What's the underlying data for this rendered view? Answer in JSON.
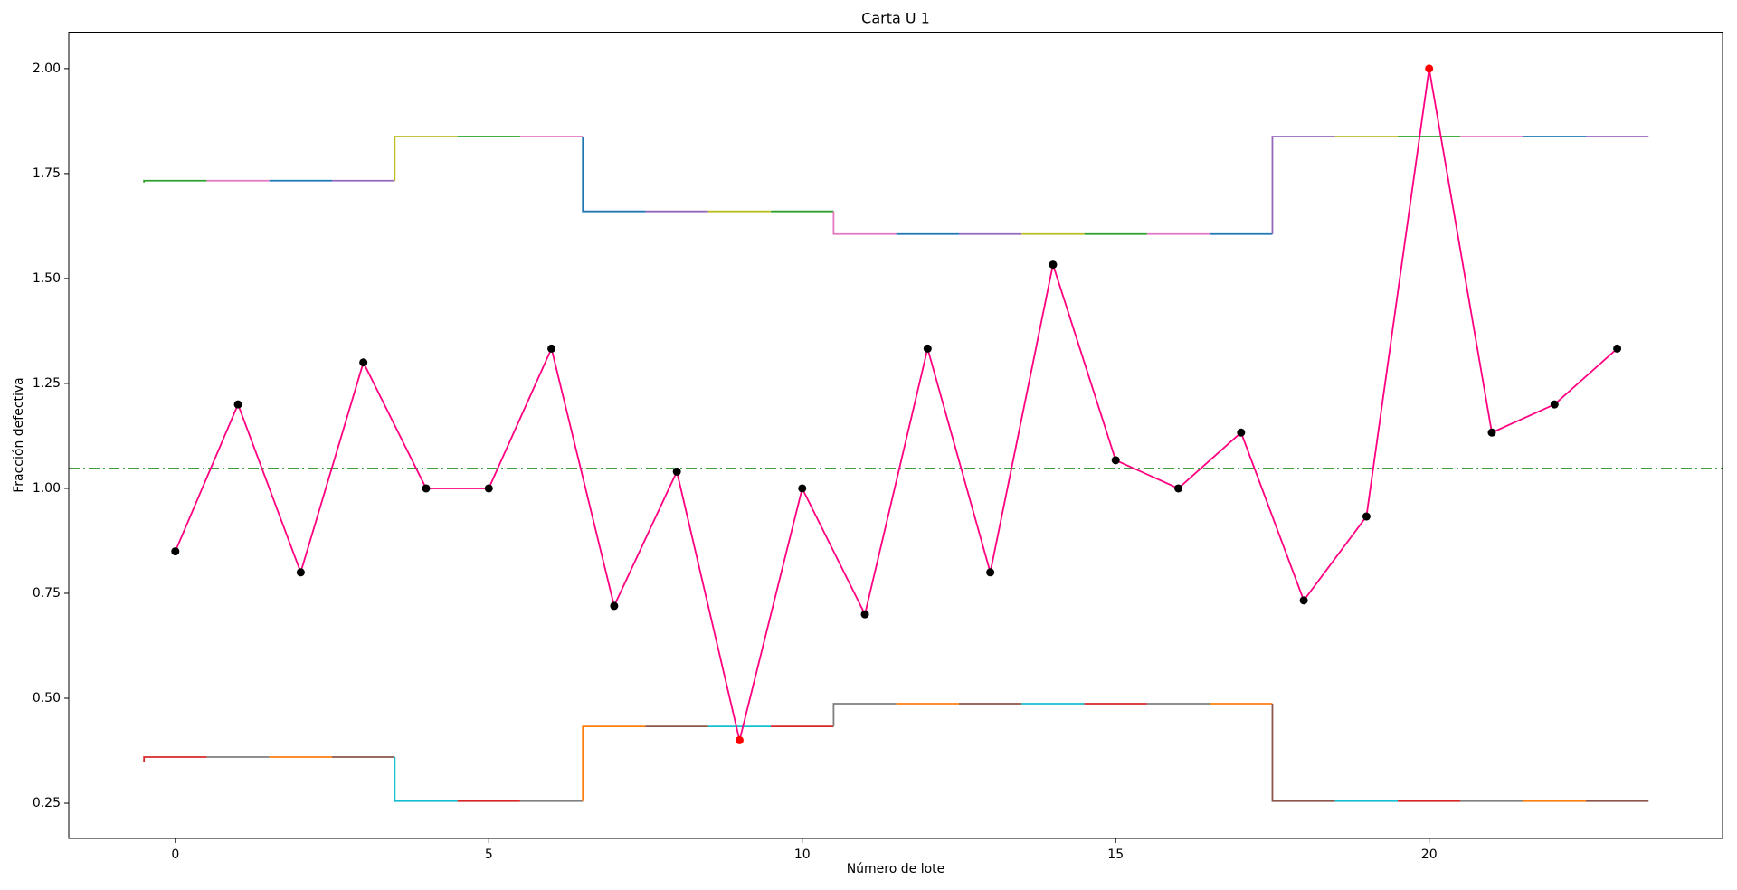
{
  "chart_data": {
    "type": "control",
    "title": "Carta U 1",
    "x_label": "Número de lote",
    "y_label": "Fracción defectiva",
    "x": [
      0,
      1,
      2,
      3,
      4,
      5,
      6,
      7,
      8,
      9,
      10,
      11,
      12,
      13,
      14,
      15,
      16,
      17,
      18,
      19,
      20,
      21,
      22,
      23
    ],
    "values": [
      0.85,
      1.2,
      0.8,
      1.3,
      1.0,
      1.0,
      1.333,
      0.72,
      1.04,
      0.4,
      1.0,
      0.7,
      1.333,
      0.8,
      1.533,
      1.067,
      1.0,
      1.133,
      0.733,
      0.933,
      2.0,
      1.133,
      1.2,
      1.333
    ],
    "line_color": "#ff0080",
    "marker_color": "#000000",
    "out_color": "#ff0000",
    "center": 1.047,
    "center_color": "#008000",
    "ucl": [
      1.733,
      1.733,
      1.733,
      1.733,
      1.838,
      1.838,
      1.838,
      1.66,
      1.66,
      1.66,
      1.66,
      1.606,
      1.606,
      1.606,
      1.606,
      1.606,
      1.606,
      1.606,
      1.838,
      1.838,
      1.838,
      1.838,
      1.838,
      1.838
    ],
    "lcl": [
      0.36,
      0.36,
      0.36,
      0.36,
      0.255,
      0.255,
      0.255,
      0.433,
      0.433,
      0.433,
      0.433,
      0.487,
      0.487,
      0.487,
      0.487,
      0.487,
      0.487,
      0.487,
      0.255,
      0.255,
      0.255,
      0.255,
      0.255,
      0.255
    ],
    "ucl_colors": [
      "#2ca02c",
      "#e377c2",
      "#1f77b4",
      "#9467bd",
      "#bcbd22"
    ],
    "lcl_colors": [
      "#d62728",
      "#7f7f7f",
      "#ff7f0e",
      "#8c564b",
      "#17becf"
    ],
    "xlim": [
      -1.7,
      24.68
    ],
    "ylim": [
      0.166,
      2.087
    ],
    "xticks": [
      0,
      5,
      10,
      15,
      20
    ],
    "yticks": [
      {
        "value": 0.25,
        "label": "0.25"
      },
      {
        "value": 0.5,
        "label": "0.50"
      },
      {
        "value": 0.75,
        "label": "0.75"
      },
      {
        "value": 1.0,
        "label": "1.00"
      },
      {
        "value": 1.25,
        "label": "1.25"
      },
      {
        "value": 1.5,
        "label": "1.50"
      },
      {
        "value": 1.75,
        "label": "1.75"
      },
      {
        "value": 2.0,
        "label": "2.00"
      }
    ]
  }
}
